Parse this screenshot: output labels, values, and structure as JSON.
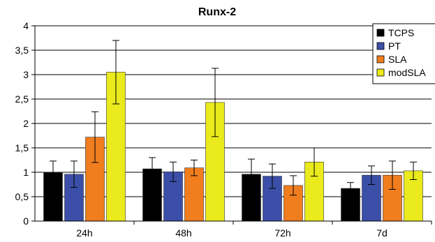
{
  "chart_data": {
    "type": "bar",
    "title": "Runx-2",
    "xlabel": "",
    "ylabel": "",
    "categories": [
      "24h",
      "48h",
      "72h",
      "7d"
    ],
    "y_tick_labels": [
      "0",
      "0,5",
      "1",
      "1,5",
      "2",
      "2,5",
      "3",
      "3,5",
      "4"
    ],
    "ylim": [
      0,
      4
    ],
    "grid": true,
    "legend_position": "top-right",
    "series": [
      {
        "name": "TCPS",
        "color": "#000000",
        "values": [
          1.0,
          1.07,
          0.96,
          0.67
        ],
        "errors": [
          0.23,
          0.23,
          0.31,
          0.12
        ]
      },
      {
        "name": "PT",
        "color": "#3b4fa8",
        "values": [
          0.96,
          1.01,
          0.92,
          0.94
        ],
        "errors": [
          0.27,
          0.2,
          0.25,
          0.19
        ]
      },
      {
        "name": "SLA",
        "color": "#f07d1e",
        "values": [
          1.72,
          1.09,
          0.73,
          0.94
        ],
        "errors": [
          0.52,
          0.16,
          0.2,
          0.29
        ]
      },
      {
        "name": "modSLA",
        "color": "#eaea1c",
        "values": [
          3.05,
          2.43,
          1.21,
          1.03
        ],
        "errors": [
          0.65,
          0.7,
          0.29,
          0.18
        ]
      }
    ]
  }
}
